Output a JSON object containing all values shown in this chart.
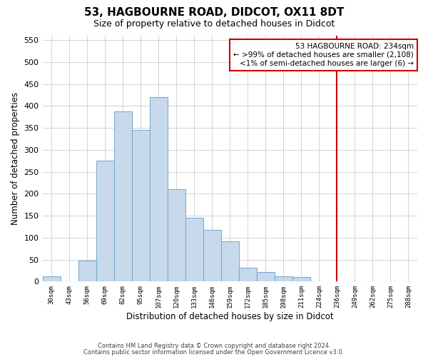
{
  "title": "53, HAGBOURNE ROAD, DIDCOT, OX11 8DT",
  "subtitle": "Size of property relative to detached houses in Didcot",
  "xlabel": "Distribution of detached houses by size in Didcot",
  "ylabel": "Number of detached properties",
  "footer_line1": "Contains HM Land Registry data © Crown copyright and database right 2024.",
  "footer_line2": "Contains public sector information licensed under the Open Government Licence v3.0.",
  "bin_labels": [
    "30sqm",
    "43sqm",
    "56sqm",
    "69sqm",
    "82sqm",
    "95sqm",
    "107sqm",
    "120sqm",
    "133sqm",
    "146sqm",
    "159sqm",
    "172sqm",
    "185sqm",
    "198sqm",
    "211sqm",
    "224sqm",
    "236sqm",
    "249sqm",
    "262sqm",
    "275sqm",
    "288sqm"
  ],
  "bar_values": [
    12,
    0,
    48,
    275,
    388,
    346,
    420,
    210,
    145,
    118,
    92,
    31,
    22,
    12,
    10,
    0,
    0,
    0,
    0,
    0,
    0
  ],
  "bar_color": "#c9d9ec",
  "bar_edge_color": "#7aadcf",
  "ylim": [
    0,
    560
  ],
  "yticks": [
    0,
    50,
    100,
    150,
    200,
    250,
    300,
    350,
    400,
    450,
    500,
    550
  ],
  "vline_x": 16,
  "vline_color": "#cc0000",
  "annotation_title": "53 HAGBOURNE ROAD: 234sqm",
  "annotation_line1": "← >99% of detached houses are smaller (2,108)",
  "annotation_line2": "<1% of semi-detached houses are larger (6) →",
  "annotation_box_color": "#ffffff",
  "annotation_box_edge": "#cc0000",
  "background_color": "#ffffff",
  "grid_color": "#cccccc"
}
